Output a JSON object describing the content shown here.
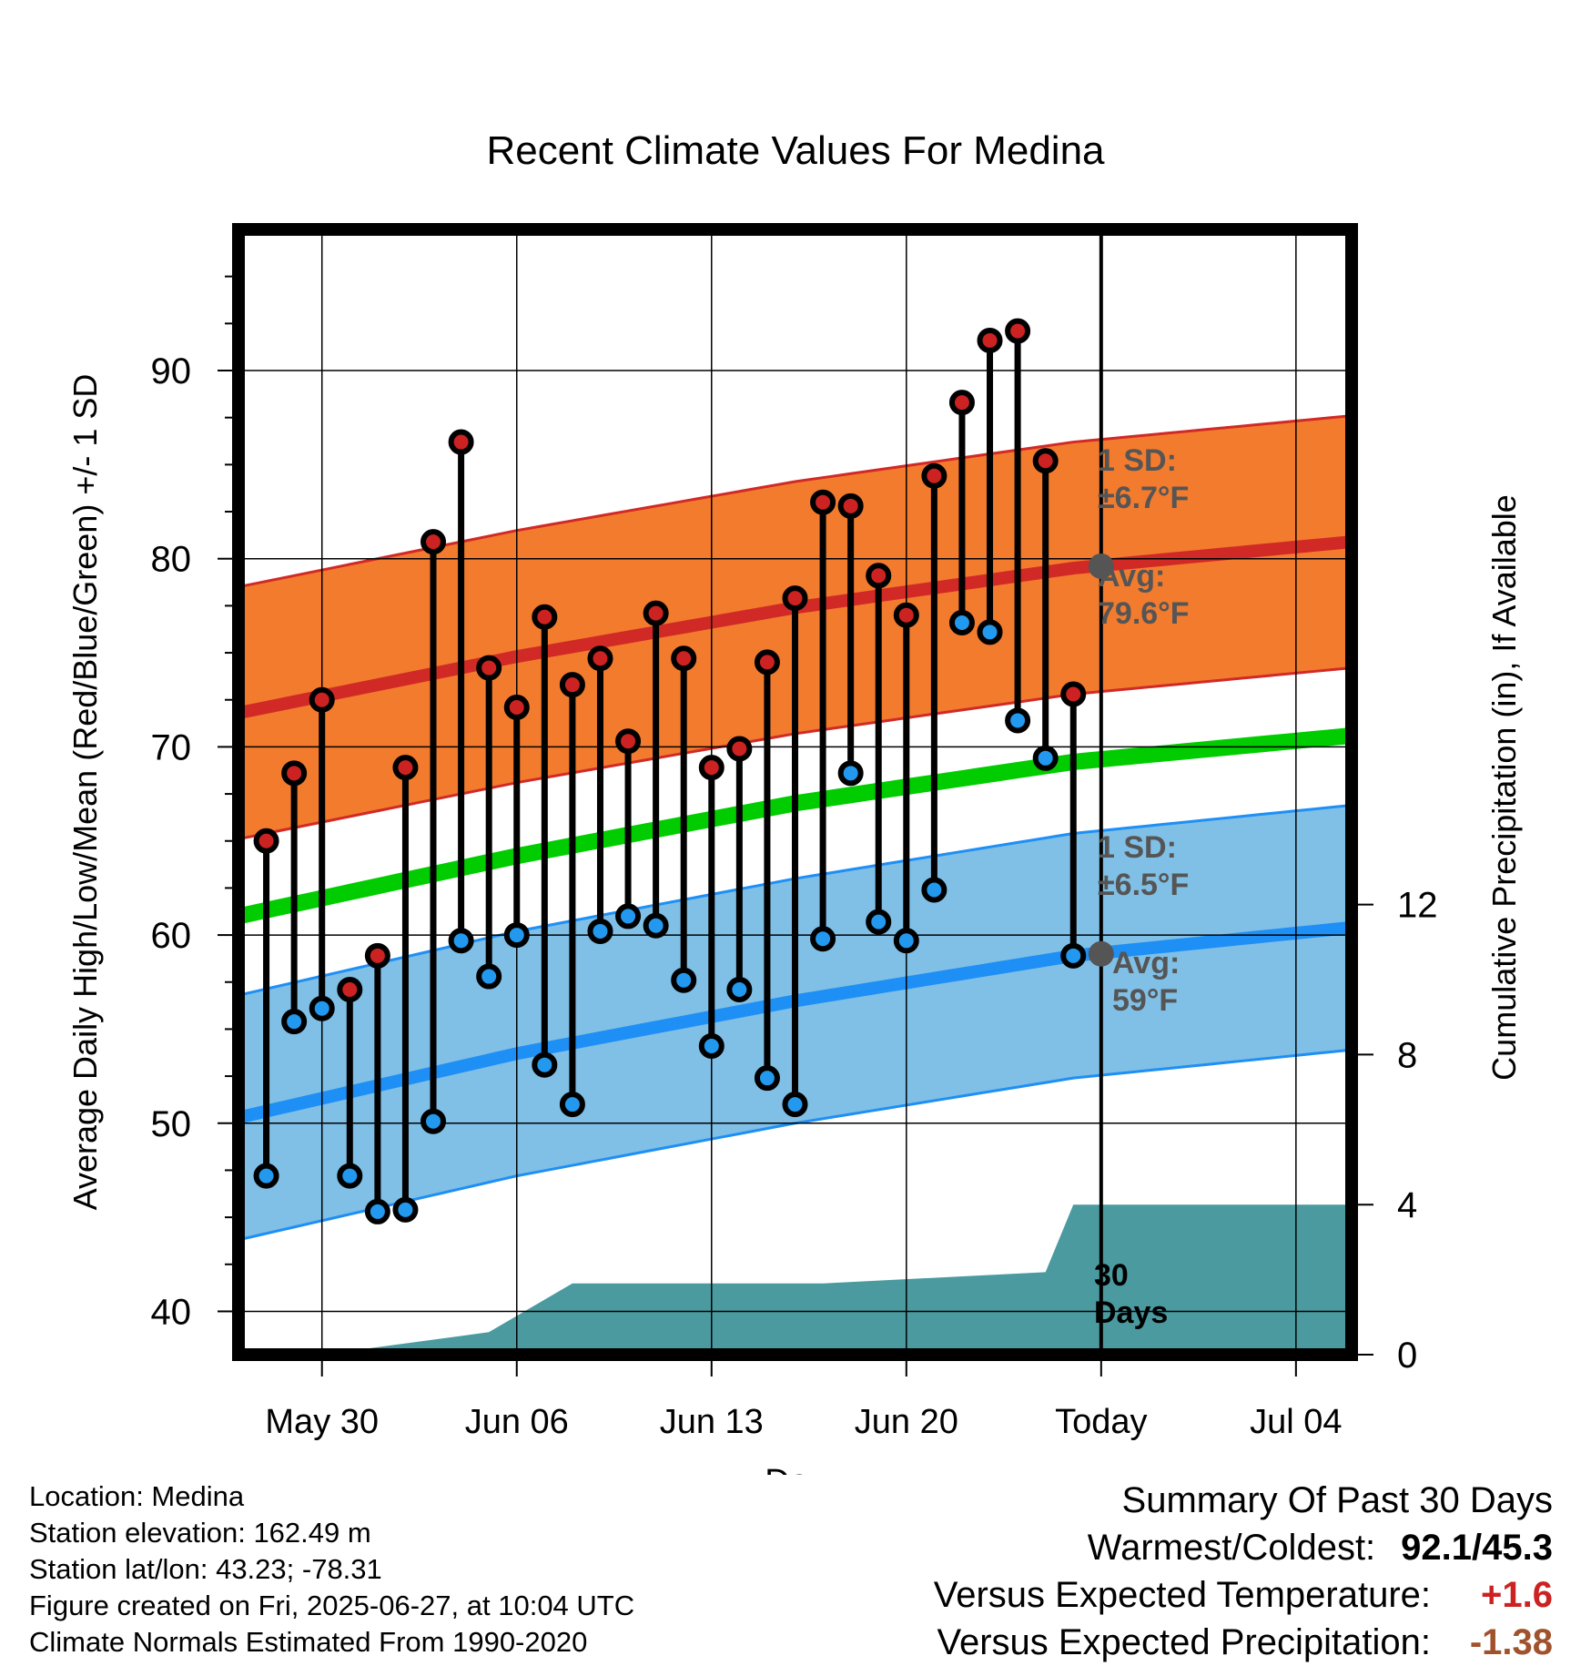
{
  "chart_data": {
    "type": "line",
    "title": "Recent Climate Values For Medina",
    "xlabel": "Day",
    "ylabel": "Average Daily High/Low/Mean (Red/Blue/Green) +/- 1 SD",
    "y2label": "Cumulative Precipitation (in), If Available",
    "ylim": [
      37.7,
      97.5
    ],
    "y2lim": [
      0,
      30
    ],
    "xlim": [
      "May 27",
      "Jul 06"
    ],
    "x_ticks": [
      "May 30",
      "Jun 06",
      "Jun 13",
      "Jun 20",
      "Today",
      "Jul 04"
    ],
    "y_ticks": [
      40,
      50,
      60,
      70,
      80,
      90
    ],
    "y2_ticks": [
      0,
      4,
      8,
      12
    ],
    "grid": true,
    "today": "Jun 27",
    "days": [
      "May 28",
      "May 29",
      "May 30",
      "May 31",
      "Jun 01",
      "Jun 02",
      "Jun 03",
      "Jun 04",
      "Jun 05",
      "Jun 06",
      "Jun 07",
      "Jun 08",
      "Jun 09",
      "Jun 10",
      "Jun 11",
      "Jun 12",
      "Jun 13",
      "Jun 14",
      "Jun 15",
      "Jun 16",
      "Jun 17",
      "Jun 18",
      "Jun 19",
      "Jun 20",
      "Jun 21",
      "Jun 22",
      "Jun 23",
      "Jun 24",
      "Jun 25",
      "Jun 26"
    ],
    "series": [
      {
        "name": "High",
        "values": [
          65.0,
          68.6,
          72.5,
          57.1,
          58.9,
          68.9,
          80.9,
          86.2,
          74.2,
          72.1,
          76.9,
          73.3,
          74.7,
          70.3,
          77.1,
          74.7,
          68.9,
          69.9,
          74.5,
          77.9,
          83.0,
          82.8,
          79.1,
          77.0,
          84.4,
          88.3,
          91.6,
          92.1,
          85.2,
          72.8
        ]
      },
      {
        "name": "Low",
        "values": [
          47.2,
          55.4,
          56.1,
          47.2,
          45.3,
          45.4,
          50.1,
          59.7,
          57.8,
          60.0,
          53.1,
          51.0,
          60.2,
          61.0,
          60.5,
          57.6,
          54.1,
          57.1,
          52.4,
          51.0,
          59.8,
          68.6,
          60.7,
          59.7,
          62.4,
          76.6,
          76.1,
          71.4,
          69.4,
          58.9
        ]
      }
    ],
    "normals": {
      "dates": [
        "May 27",
        "Jun 06",
        "Jun 16",
        "Jun 26",
        "Jul 06"
      ],
      "avg_high": [
        71.8,
        74.8,
        77.4,
        79.5,
        80.9
      ],
      "avg_low": [
        50.3,
        53.7,
        56.5,
        58.9,
        60.4
      ],
      "avg_mean": [
        61.0,
        64.2,
        67.0,
        69.2,
        70.6
      ],
      "high_sd": 6.7,
      "low_sd": 6.5
    },
    "precip_cumulative": {
      "steps": [
        [
          "May 27",
          0
        ],
        [
          "May 31",
          0.1
        ],
        [
          "Jun 05",
          0.6
        ],
        [
          "Jun 08",
          1.9
        ],
        [
          "Jun 17",
          1.9
        ],
        [
          "Jun 25",
          2.2
        ],
        [
          "Jun 26",
          4.0
        ],
        [
          "Jul 06",
          4.0
        ]
      ],
      "label_line1": "30",
      "label_line2": "Days"
    },
    "annotations": {
      "high_sd_label": "1 SD:",
      "high_sd_value": "±6.7°F",
      "high_avg_label": "Avg:",
      "high_avg_value": "79.6°F",
      "low_sd_label": "1 SD:",
      "low_sd_value": "±6.5°F",
      "low_avg_label": "Avg:",
      "low_avg_value": "59°F",
      "today_high_avg": 79.6,
      "today_low_avg": 59.0
    },
    "colors": {
      "high_band": "#f27b2e",
      "high_line": "#d12a26",
      "low_band": "#80bfe6",
      "low_line": "#1e8ff5",
      "mean_line": "#00cc00",
      "precip": "#4a9aa0",
      "high_marker": "#cc2222",
      "low_marker": "#2299ee",
      "today_marker": "#555555",
      "annotation_text": "#555555"
    }
  },
  "footer": {
    "location": "Location: Medina",
    "elevation": "Station elevation: 162.49 m",
    "latlon": "Station lat/lon: 43.23; -78.31",
    "created": "Figure created on Fri, 2025-06-27, at 10:04 UTC",
    "normals_note": "Climate Normals Estimated From 1990-2020"
  },
  "summary": {
    "heading": "Summary Of Past 30 Days",
    "warm_cold_label": "Warmest/Coldest:",
    "warm_cold_value": "92.1/45.3",
    "temp_label": "Versus Expected Temperature:",
    "temp_value": "+1.6",
    "temp_color": "#cc2222",
    "precip_label": "Versus Expected Precipitation:",
    "precip_value": "-1.38",
    "precip_color": "#a0522d"
  }
}
